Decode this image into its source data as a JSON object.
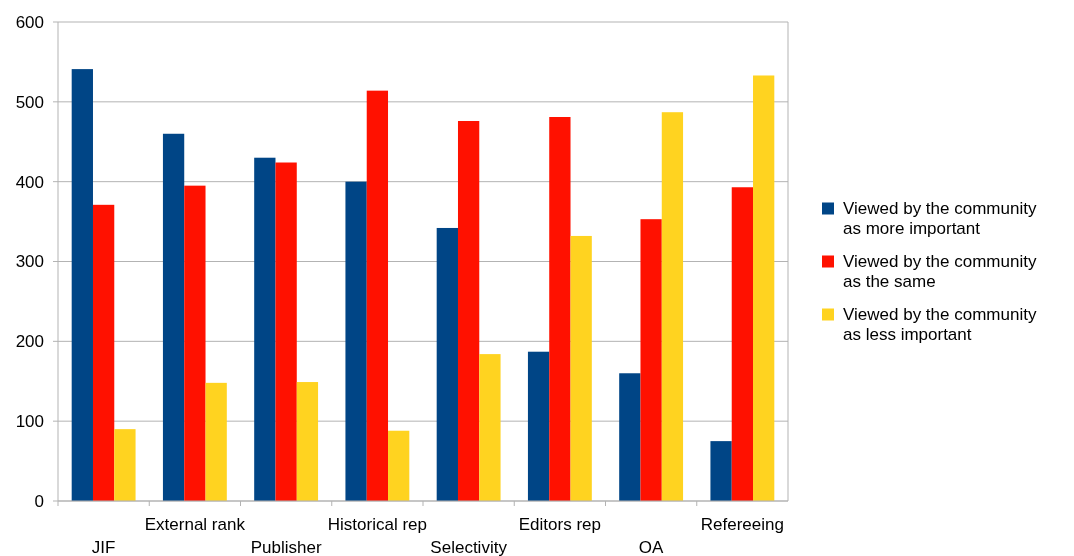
{
  "chart_data": {
    "type": "bar",
    "categories": [
      "JIF",
      "External rank",
      "Publisher",
      "Historical rep",
      "Selectivity",
      "Editors rep",
      "OA",
      "Refereeing"
    ],
    "series": [
      {
        "name": "Viewed by the community as more important",
        "color": "#004586",
        "values": [
          541,
          460,
          430,
          400,
          342,
          187,
          160,
          75
        ]
      },
      {
        "name": "Viewed by the community as the same",
        "color": "#ff1100",
        "values": [
          371,
          395,
          424,
          514,
          476,
          481,
          353,
          393
        ]
      },
      {
        "name": "Viewed by the community as less important",
        "color": "#ffd320",
        "values": [
          90,
          148,
          149,
          88,
          184,
          332,
          487,
          533
        ]
      }
    ],
    "ylim": [
      0,
      600
    ],
    "yticks": [
      0,
      100,
      200,
      300,
      400,
      500,
      600
    ],
    "grid": "y",
    "legend": "right"
  }
}
